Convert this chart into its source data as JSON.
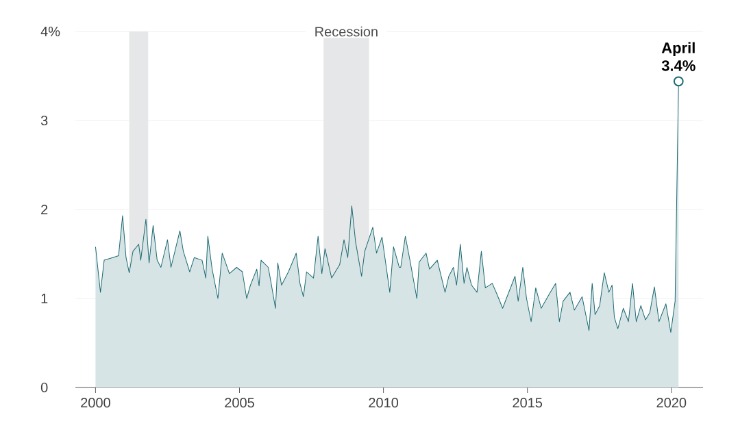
{
  "chart_data": {
    "type": "area",
    "xlim": [
      1999.3,
      2021.1
    ],
    "ylim": [
      0,
      4
    ],
    "xticks": [
      2000,
      2005,
      2010,
      2015,
      2020
    ],
    "yticks": [
      0,
      1,
      2,
      3,
      {
        "value": 4,
        "label": "4%"
      }
    ],
    "grid": "y",
    "bands": [
      {
        "axis": "x",
        "from": 2001.17,
        "to": 2001.83,
        "color": "#e6e7e8"
      },
      {
        "axis": "x",
        "from": 2007.92,
        "to": 2009.5,
        "label": "Recession",
        "color": "#e6e7e8"
      }
    ],
    "annotations": [
      {
        "text": "April 3.4%",
        "x": 2020.25,
        "y": 3.44
      }
    ],
    "series": [
      {
        "color": "#1b6a72",
        "x": [
          2000.0,
          2000.17,
          2000.3,
          2000.6,
          2000.8,
          2000.94,
          2001.06,
          2001.17,
          2001.3,
          2001.5,
          2001.57,
          2001.75,
          2001.86,
          2002.0,
          2002.14,
          2002.27,
          2002.5,
          2002.62,
          2002.93,
          2003.05,
          2003.27,
          2003.43,
          2003.7,
          2003.83,
          2003.9,
          2004.05,
          2004.25,
          2004.4,
          2004.65,
          2004.9,
          2005.1,
          2005.25,
          2005.38,
          2005.6,
          2005.68,
          2005.75,
          2006.0,
          2006.1,
          2006.25,
          2006.33,
          2006.46,
          2006.7,
          2006.97,
          2007.1,
          2007.22,
          2007.33,
          2007.57,
          2007.73,
          2007.86,
          2007.97,
          2008.2,
          2008.48,
          2008.63,
          2008.76,
          2008.9,
          2009.03,
          2009.24,
          2009.35,
          2009.63,
          2009.76,
          2009.95,
          2010.22,
          2010.35,
          2010.55,
          2010.6,
          2010.76,
          2010.92,
          2011.16,
          2011.24,
          2011.48,
          2011.6,
          2011.87,
          2012.14,
          2012.27,
          2012.43,
          2012.54,
          2012.67,
          2012.8,
          2012.9,
          2013.06,
          2013.25,
          2013.4,
          2013.54,
          2013.78,
          2013.94,
          2014.14,
          2014.33,
          2014.57,
          2014.68,
          2014.84,
          2014.97,
          2015.13,
          2015.29,
          2015.48,
          2015.76,
          2015.98,
          2016.11,
          2016.24,
          2016.48,
          2016.63,
          2016.9,
          2017.14,
          2017.25,
          2017.35,
          2017.51,
          2017.67,
          2017.83,
          2017.94,
          2018.02,
          2018.14,
          2018.33,
          2018.51,
          2018.65,
          2018.78,
          2018.94,
          2019.1,
          2019.25,
          2019.41,
          2019.57,
          2019.81,
          2019.98,
          2020.13,
          2020.25
        ],
        "values": [
          1.58,
          1.07,
          1.43,
          1.46,
          1.48,
          1.93,
          1.46,
          1.29,
          1.53,
          1.61,
          1.43,
          1.89,
          1.4,
          1.82,
          1.43,
          1.35,
          1.66,
          1.35,
          1.76,
          1.53,
          1.3,
          1.46,
          1.43,
          1.23,
          1.7,
          1.33,
          1.0,
          1.51,
          1.28,
          1.35,
          1.3,
          1.0,
          1.15,
          1.33,
          1.14,
          1.43,
          1.35,
          1.17,
          0.89,
          1.4,
          1.15,
          1.3,
          1.51,
          1.17,
          1.02,
          1.3,
          1.23,
          1.7,
          1.28,
          1.56,
          1.23,
          1.38,
          1.66,
          1.46,
          2.04,
          1.64,
          1.25,
          1.53,
          1.8,
          1.51,
          1.69,
          1.07,
          1.58,
          1.35,
          1.35,
          1.7,
          1.43,
          1.0,
          1.41,
          1.51,
          1.33,
          1.43,
          1.07,
          1.25,
          1.35,
          1.15,
          1.61,
          1.17,
          1.35,
          1.15,
          1.07,
          1.53,
          1.12,
          1.17,
          1.05,
          0.89,
          1.05,
          1.25,
          0.97,
          1.35,
          1.0,
          0.74,
          1.12,
          0.89,
          1.05,
          1.17,
          0.74,
          0.97,
          1.07,
          0.87,
          1.02,
          0.64,
          1.17,
          0.82,
          0.92,
          1.29,
          1.07,
          1.15,
          0.79,
          0.66,
          0.89,
          0.74,
          1.17,
          0.74,
          0.92,
          0.76,
          0.84,
          1.13,
          0.74,
          0.94,
          0.62,
          0.97,
          3.44
        ]
      }
    ]
  }
}
